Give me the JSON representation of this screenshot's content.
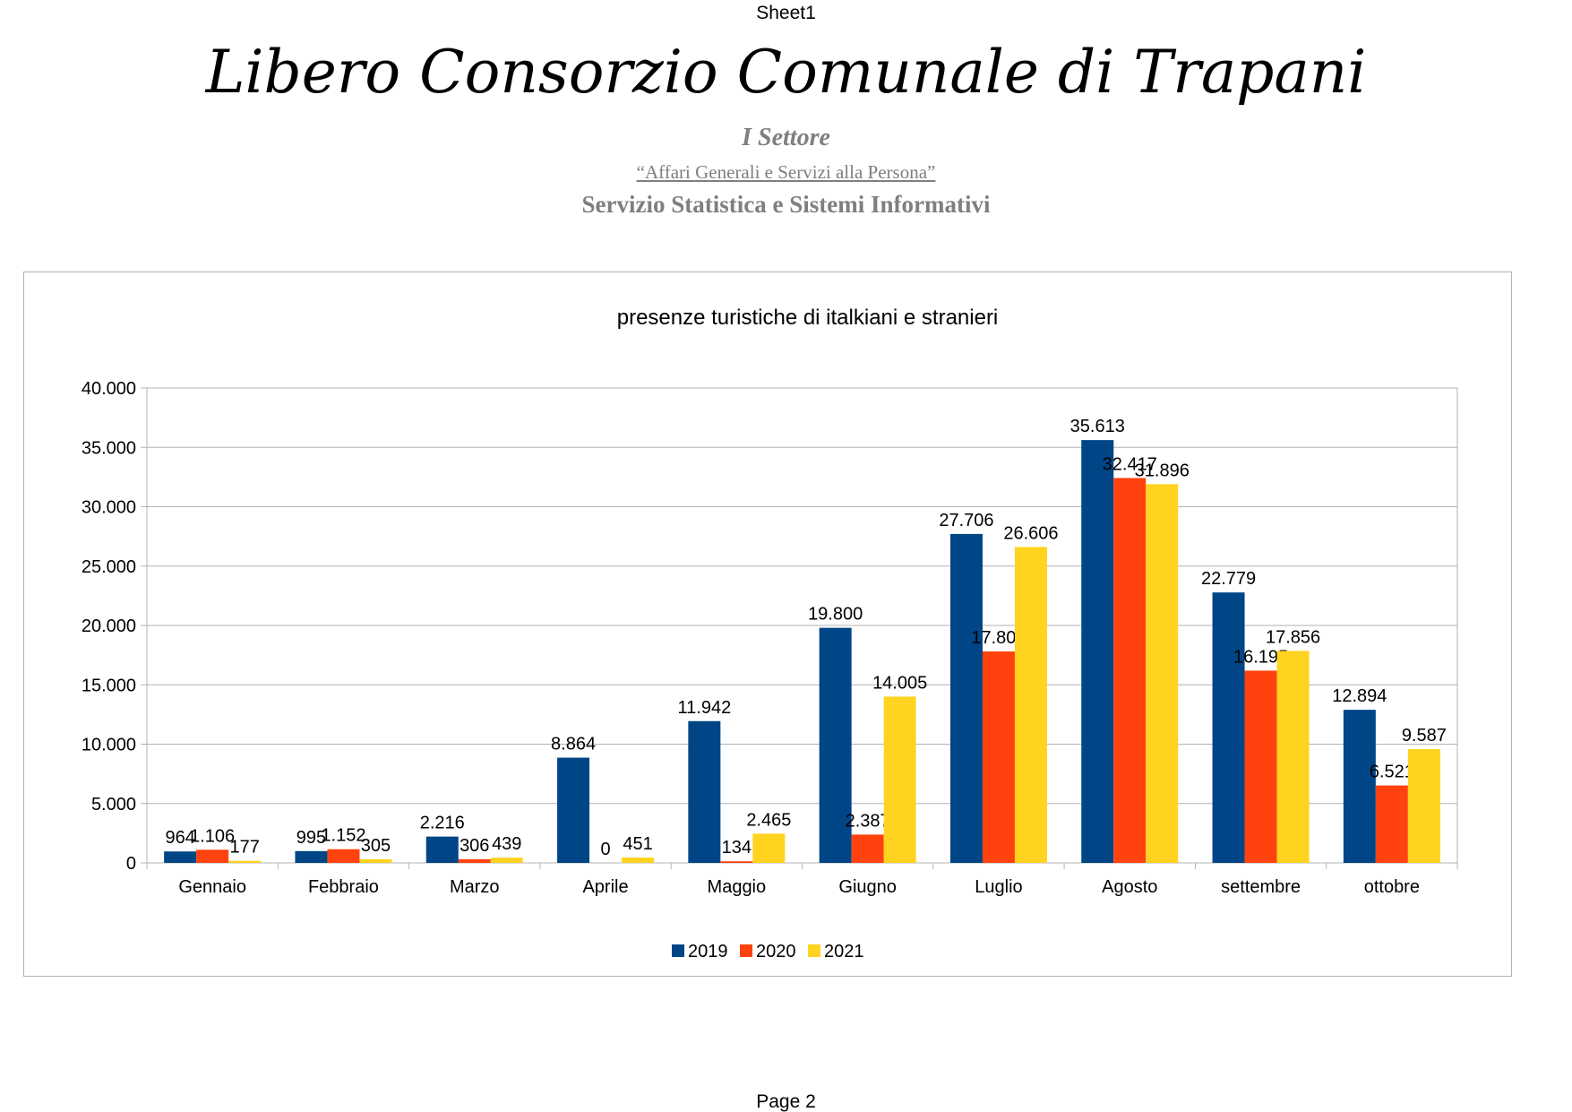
{
  "header": {
    "sheet_name": "Sheet1",
    "org_title": "Libero Consorzio Comunale di Trapani",
    "sector": "I Settore",
    "department": "“Affari Generali e Servizi alla Persona”",
    "service": "Servizio Statistica  e Sistemi Informativi"
  },
  "footer": {
    "page_label": "Page 2"
  },
  "chart_data": {
    "type": "bar",
    "title": "presenze turistiche di italkiani e stranieri",
    "xlabel": "",
    "ylabel": "",
    "categories": [
      "Gennaio",
      "Febbraio",
      "Marzo",
      "Aprile",
      "Maggio",
      "Giugno",
      "Luglio",
      "Agosto",
      "settembre",
      "ottobre"
    ],
    "series": [
      {
        "name": "2019",
        "color": "#004586",
        "values": [
          964,
          995,
          2216,
          8864,
          11942,
          19800,
          27706,
          35613,
          22779,
          12894
        ]
      },
      {
        "name": "2020",
        "color": "#ff420e",
        "values": [
          1106,
          1152,
          306,
          0,
          134,
          2387,
          17808,
          32417,
          16195,
          6521
        ]
      },
      {
        "name": "2021",
        "color": "#ffd320",
        "values": [
          177,
          305,
          439,
          451,
          2465,
          14005,
          26606,
          31896,
          17856,
          9587
        ]
      }
    ],
    "ylim": [
      0,
      40000
    ],
    "yticks": [
      0,
      5000,
      10000,
      15000,
      20000,
      25000,
      30000,
      35000,
      40000
    ],
    "ytick_labels": [
      "0",
      "5.000",
      "10.000",
      "15.000",
      "20.000",
      "25.000",
      "30.000",
      "35.000",
      "40.000"
    ],
    "data_labels": [
      [
        "964",
        "995",
        "2.216",
        "8.864",
        "11.942",
        "19.800",
        "27.706",
        "35.613",
        "22.779",
        "12.894"
      ],
      [
        "1.106",
        "1.152",
        "306",
        "0",
        "134",
        "2.387",
        "17.808",
        "32.417",
        "16.195",
        "6.521"
      ],
      [
        "177",
        "305",
        "439",
        "451",
        "2.465",
        "14.005",
        "26.606",
        "31.896",
        "17.856",
        "9.587"
      ]
    ],
    "grid": true,
    "legend": "bottom"
  }
}
